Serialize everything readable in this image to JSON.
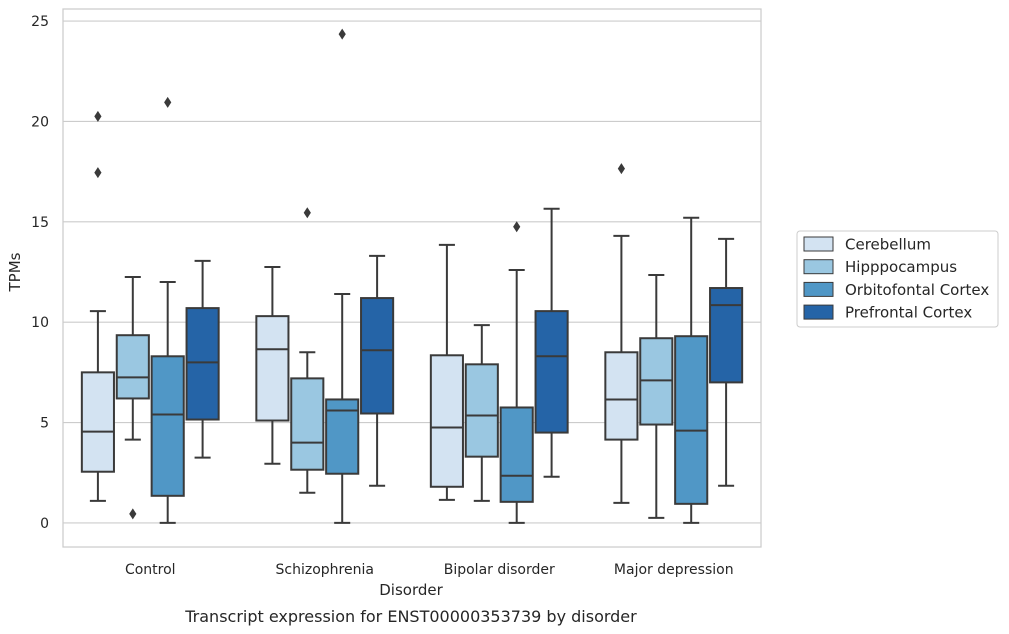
{
  "caption": "Transcript expression for ENST00000353739 by disorder",
  "chart_data": {
    "type": "boxplot",
    "xlabel": "Disorder",
    "ylabel": "TPMs",
    "ylim": [
      -1.2,
      25.6
    ],
    "yticks": [
      0,
      5,
      10,
      15,
      20,
      25
    ],
    "grid": "horizontal",
    "legend_position": "right",
    "categories": [
      "Control",
      "Schizophrenia",
      "Bipolar disorder",
      "Major depression"
    ],
    "series": [
      {
        "name": "Cerebellum",
        "color": "#d3e3f2",
        "boxes": [
          {
            "whislo": 1.1,
            "q1": 2.55,
            "med": 4.55,
            "q3": 7.5,
            "whishi": 10.55,
            "fliers": [
              17.45,
              20.25
            ]
          },
          {
            "whislo": 2.95,
            "q1": 5.1,
            "med": 8.65,
            "q3": 10.3,
            "whishi": 12.75,
            "fliers": []
          },
          {
            "whislo": 1.15,
            "q1": 1.8,
            "med": 4.75,
            "q3": 8.35,
            "whishi": 13.85,
            "fliers": []
          },
          {
            "whislo": 1.0,
            "q1": 4.15,
            "med": 6.15,
            "q3": 8.5,
            "whishi": 14.3,
            "fliers": [
              17.65
            ]
          }
        ]
      },
      {
        "name": "Hipppocampus",
        "color": "#9ac7e1",
        "boxes": [
          {
            "whislo": 4.15,
            "q1": 6.2,
            "med": 7.25,
            "q3": 9.35,
            "whishi": 12.25,
            "fliers": [
              0.45
            ]
          },
          {
            "whislo": 1.5,
            "q1": 2.65,
            "med": 4.0,
            "q3": 7.2,
            "whishi": 8.5,
            "fliers": [
              15.45
            ]
          },
          {
            "whislo": 1.1,
            "q1": 3.3,
            "med": 5.35,
            "q3": 7.9,
            "whishi": 9.85,
            "fliers": []
          },
          {
            "whislo": 0.25,
            "q1": 4.9,
            "med": 7.1,
            "q3": 9.2,
            "whishi": 12.35,
            "fliers": []
          }
        ]
      },
      {
        "name": "Orbitofontal Cortex",
        "color": "#5097c6",
        "boxes": [
          {
            "whislo": 0.0,
            "q1": 1.35,
            "med": 5.4,
            "q3": 8.3,
            "whishi": 12.0,
            "fliers": [
              20.95
            ]
          },
          {
            "whislo": 0.0,
            "q1": 2.45,
            "med": 5.6,
            "q3": 6.15,
            "whishi": 11.4,
            "fliers": [
              24.35
            ]
          },
          {
            "whislo": 0.0,
            "q1": 1.05,
            "med": 2.35,
            "q3": 5.75,
            "whishi": 12.6,
            "fliers": [
              14.75
            ]
          },
          {
            "whislo": 0.0,
            "q1": 0.95,
            "med": 4.6,
            "q3": 9.3,
            "whishi": 15.2,
            "fliers": []
          }
        ]
      },
      {
        "name": "Prefrontal Cortex",
        "color": "#2564a7",
        "boxes": [
          {
            "whislo": 3.25,
            "q1": 5.15,
            "med": 8.0,
            "q3": 10.7,
            "whishi": 13.05,
            "fliers": []
          },
          {
            "whislo": 1.85,
            "q1": 5.45,
            "med": 8.6,
            "q3": 11.2,
            "whishi": 13.3,
            "fliers": []
          },
          {
            "whislo": 2.3,
            "q1": 4.5,
            "med": 8.3,
            "q3": 10.55,
            "whishi": 15.65,
            "fliers": []
          },
          {
            "whislo": 1.85,
            "q1": 7.0,
            "med": 10.85,
            "q3": 11.7,
            "whishi": 14.15,
            "fliers": []
          }
        ]
      }
    ]
  }
}
